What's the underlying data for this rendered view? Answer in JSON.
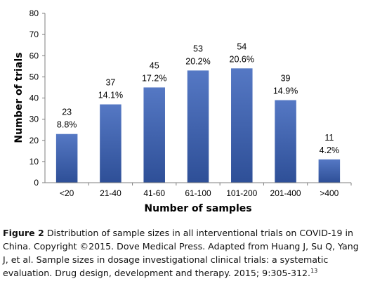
{
  "chart_data": {
    "type": "bar",
    "categories": [
      "<20",
      "21-40",
      "41-60",
      "61-100",
      "101-200",
      "201-400",
      ">400"
    ],
    "values": [
      23,
      37,
      45,
      53,
      54,
      39,
      11
    ],
    "percent_labels": [
      "8.8%",
      "14.1%",
      "17.2%",
      "20.2%",
      "20.6%",
      "14.9%",
      "4.2%"
    ],
    "xlabel": "Number of samples",
    "ylabel": "Number of trials",
    "ylim": [
      0,
      80
    ],
    "yticks": [
      0,
      10,
      20,
      30,
      40,
      50,
      60,
      70,
      80
    ],
    "grid": false,
    "bar_color_top": "#5578c4",
    "bar_color_bottom": "#2e4f97"
  },
  "caption": {
    "label": "Figure 2",
    "text": "Distribution of sample sizes in all interventional trials on COVID-19 in China. Copyright ©2015. Dove Medical Press. Adapted from Huang J, Su Q, Yang J, et al. Sample sizes in dosage investigational clinical trials: a systematic evaluation. Drug design, development and therapy. 2015; 9:305-312.",
    "reference": "13"
  }
}
